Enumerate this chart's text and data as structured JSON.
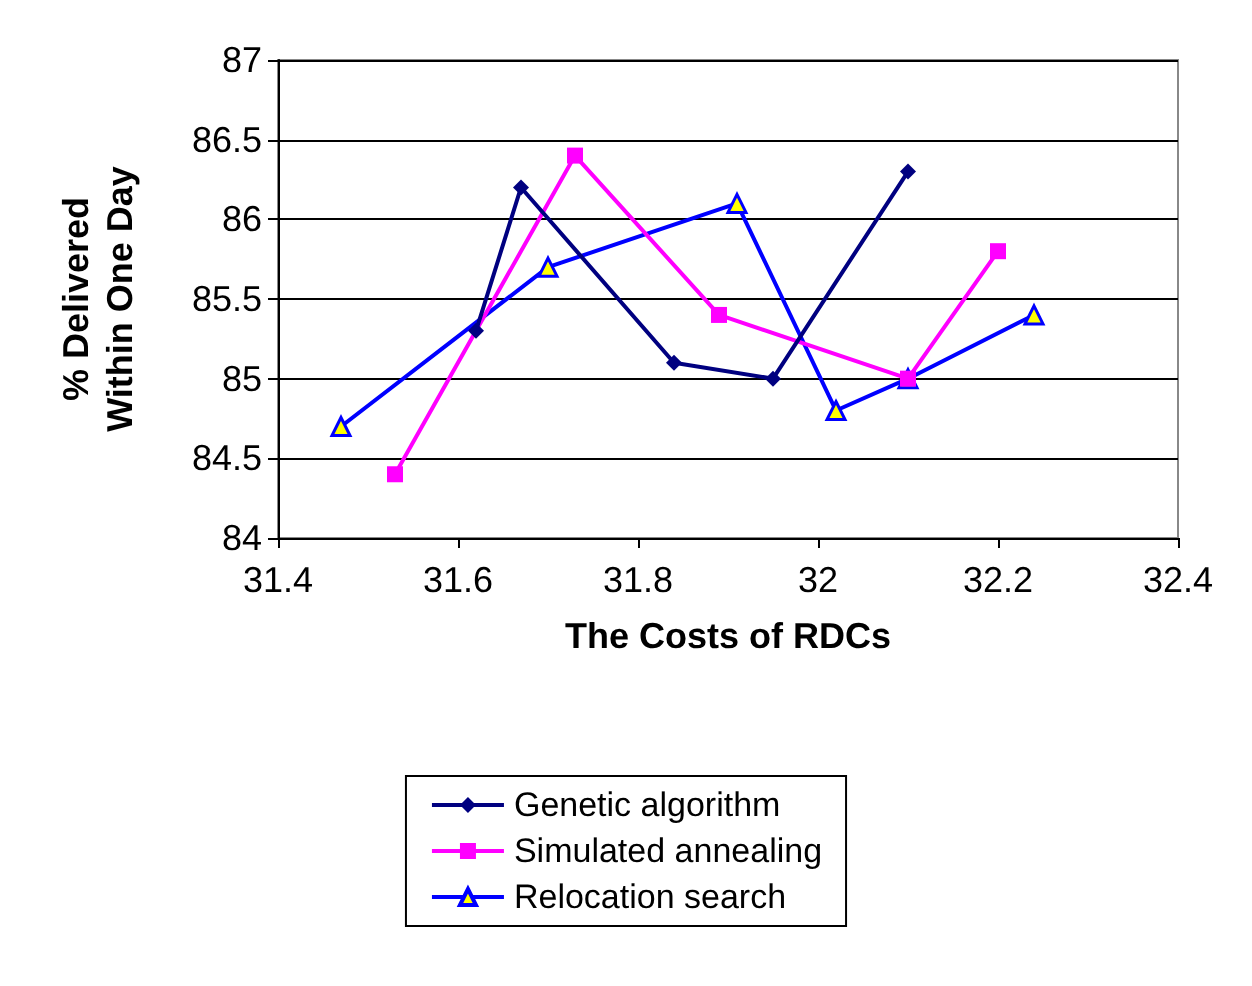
{
  "chart_data": {
    "type": "line",
    "xlabel": "The Costs of RDCs",
    "ylabel": "% Delivered Within One Day",
    "xlim": [
      31.4,
      32.4
    ],
    "xticks": [
      31.4,
      31.6,
      31.8,
      32,
      32.2,
      32.4
    ],
    "ylim": [
      84,
      87
    ],
    "yticks": [
      84,
      84.5,
      85,
      85.5,
      86,
      86.5,
      87
    ],
    "grid": "y",
    "legend": "bottom",
    "series": [
      {
        "name": "Genetic algorithm",
        "color": "#000080",
        "marker": "diamond",
        "x": [
          31.62,
          31.67,
          31.84,
          31.95,
          32.1
        ],
        "values": [
          85.3,
          86.2,
          85.1,
          85.0,
          86.3
        ]
      },
      {
        "name": "Simulated annealing",
        "color": "#ff00ff",
        "marker": "square",
        "x": [
          31.53,
          31.73,
          31.89,
          32.1,
          32.2
        ],
        "values": [
          84.4,
          86.4,
          85.4,
          85.0,
          85.8
        ]
      },
      {
        "name": "Relocation search",
        "color": "#0000ff",
        "marker": "triangle",
        "x": [
          31.47,
          31.7,
          31.91,
          32.02,
          32.1,
          32.24
        ],
        "values": [
          84.7,
          85.7,
          86.1,
          84.8,
          85.0,
          85.4
        ]
      }
    ]
  }
}
